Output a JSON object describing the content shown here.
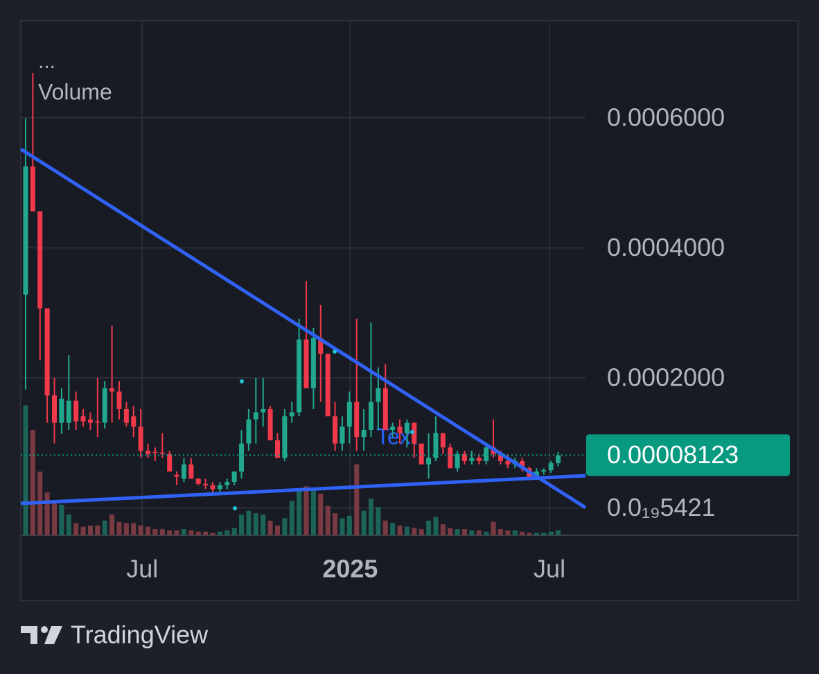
{
  "chart_data": {
    "type": "candlestick",
    "legend_dots": "...",
    "volume_label": "Volume",
    "annotation": "Text",
    "open": [
      0.000328,
      0.000525,
      0.000456,
      0.000307,
      0.000173,
      0.000131,
      0.000131,
      0.000165,
      0.000141,
      0.000136,
      0.000133,
      0.000131,
      0.000184,
      0.000179,
      0.000152,
      0.000141,
      0.000125,
      8.8e-05,
      8.6e-05,
      8.5e-05,
      8.3e-05,
      5.1e-05,
      4.5e-05,
      6.7e-05,
      4.5e-05,
      3.7e-05,
      3.5e-05,
      2.9e-05,
      3.5e-05,
      4e-05,
      5.6e-05,
      9.9e-05,
      0.000136,
      0.000147,
      0.000152,
      0.000104,
      7.7e-05,
      0.000141,
      0.000147,
      0.000259,
      0.000184,
      0.000261,
      0.000237,
      0.000141,
      9.9e-05,
      0.000125,
      0.000163,
      0.000109,
      0.00012,
      0.000163,
      0.000184,
      0.00012,
      0.000125,
      0.000115,
      0.000131,
      9.9e-05,
      6.7e-05,
      7.7e-05,
      0.000115,
      9.3e-05,
      6.1e-05,
      8.3e-05,
      7.2e-05,
      7.7e-05,
      7.2e-05,
      9.3e-05,
      8.3e-05,
      7.2e-05,
      6.7e-05,
      7.2e-05,
      6.1e-05,
      4.8e-05,
      5.6e-05,
      5.8e-05,
      6.9e-05
    ],
    "high": [
      0.000599,
      0.000669,
      0.000456,
      0.000307,
      0.0002,
      0.000184,
      0.000235,
      0.000179,
      0.000152,
      0.000147,
      0.0002,
      0.000195,
      0.00028,
      0.000195,
      0.000163,
      0.000157,
      0.000152,
      9.9e-05,
      9.3e-05,
      0.000115,
      8.8e-05,
      5.6e-05,
      7.7e-05,
      7.7e-05,
      4.5e-05,
      4.5e-05,
      4e-05,
      4e-05,
      4.5e-05,
      5.6e-05,
      0.00012,
      0.000152,
      0.0002,
      0.0002,
      0.000157,
      0.000115,
      0.000152,
      0.000163,
      0.000291,
      0.000349,
      0.000277,
      0.000312,
      0.000237,
      0.000163,
      0.000141,
      0.000179,
      0.000291,
      0.000152,
      0.000285,
      0.000216,
      0.000221,
      0.000131,
      0.000136,
      0.000136,
      0.000131,
      9.9e-05,
      0.000115,
      0.000141,
      0.000115,
      9.9e-05,
      8.8e-05,
      8.8e-05,
      8.8e-05,
      8.3e-05,
      9.9e-05,
      0.000136,
      8.8e-05,
      8.3e-05,
      7.7e-05,
      7.7e-05,
      6.4e-05,
      6.1e-05,
      6.1e-05,
      7.2e-05,
      8.6e-05
    ],
    "low": [
      0.000182,
      0.000456,
      0.000227,
      0.000131,
      9.9e-05,
      0.000114,
      0.00012,
      0.00012,
      0.000125,
      0.00012,
      0.000109,
      0.000122,
      0.000131,
      0.000136,
      0.000125,
      0.000109,
      7.7e-05,
      7.7e-05,
      7.2e-05,
      7.7e-05,
      5.6e-05,
      3.5e-05,
      4e-05,
      4.5e-05,
      3.5e-05,
      2.9e-05,
      2.4e-05,
      2.4e-05,
      2.9e-05,
      3.5e-05,
      4.5e-05,
      8.8e-05,
      9.9e-05,
      0.000125,
      0.000104,
      7.7e-05,
      7.2e-05,
      0.000131,
      0.000141,
      0.000184,
      0.000152,
      0.000163,
      0.000141,
      8.8e-05,
      8.8e-05,
      9.9e-05,
      8.8e-05,
      8.8e-05,
      0.000109,
      0.00012,
      0.00012,
      0.000109,
      9.9e-05,
      9.3e-05,
      7.7e-05,
      6.7e-05,
      4.5e-05,
      7.2e-05,
      8.3e-05,
      6.1e-05,
      5.6e-05,
      6.7e-05,
      6.7e-05,
      6.7e-05,
      6.7e-05,
      7.7e-05,
      6.7e-05,
      6.1e-05,
      6.1e-05,
      5.6e-05,
      4.5e-05,
      4.5e-05,
      5.1e-05,
      5.4e-05,
      6.4e-05
    ],
    "close": [
      0.000525,
      0.000456,
      0.000307,
      0.000173,
      0.000131,
      0.000168,
      0.000165,
      0.000133,
      0.000133,
      0.000131,
      0.000131,
      0.000184,
      0.000179,
      0.000152,
      0.000131,
      0.000125,
      8.8e-05,
      8.3e-05,
      8.5e-05,
      8.3e-05,
      5.6e-05,
      4.8e-05,
      6.7e-05,
      4.5e-05,
      3.7e-05,
      3.5e-05,
      2.9e-05,
      3.5e-05,
      4e-05,
      5.6e-05,
      9.9e-05,
      0.000136,
      0.000147,
      0.000152,
      0.000104,
      7.7e-05,
      0.000141,
      0.000147,
      0.000259,
      0.000184,
      0.000261,
      0.000237,
      0.000141,
      9.9e-05,
      0.000125,
      0.000163,
      0.000109,
      0.00012,
      0.000163,
      0.000184,
      0.00012,
      0.000125,
      0.000115,
      0.000131,
      9.9e-05,
      6.7e-05,
      7.7e-05,
      0.000115,
      9.3e-05,
      6.1e-05,
      8.3e-05,
      7.2e-05,
      7.7e-05,
      7.2e-05,
      9.3e-05,
      8.3e-05,
      7.2e-05,
      6.7e-05,
      7.2e-05,
      6.1e-05,
      4.8e-05,
      5.6e-05,
      5.8e-05,
      6.9e-05,
      8.1e-05
    ],
    "volume": [
      106,
      86,
      52,
      35,
      28,
      25,
      17,
      10,
      7,
      8,
      8,
      12,
      17,
      11,
      10,
      10,
      8,
      7,
      5,
      5,
      4,
      4,
      5,
      4,
      3,
      3,
      2,
      3,
      4,
      6,
      17,
      20,
      18,
      17,
      12,
      8,
      14,
      28,
      37,
      40,
      38,
      34,
      24,
      18,
      14,
      16,
      58,
      20,
      30,
      23,
      12,
      10,
      8,
      7,
      6,
      5,
      12,
      15,
      9,
      6,
      5,
      5,
      4,
      4,
      3,
      11,
      5,
      4,
      4,
      3,
      2,
      2,
      2,
      3,
      4
    ],
    "volume_ylim": [
      0,
      420
    ],
    "up_color": "#22a88f",
    "down_color": "#f0394b",
    "up_volume_color": "#1d6458",
    "down_volume_color": "#7a3a42",
    "ylim": [
      -4.21e-05,
      0.000749
    ],
    "yticks": [
      {
        "value": 0.0006,
        "label": "0.0006000"
      },
      {
        "value": 0.0004,
        "label": "0.0004000"
      },
      {
        "value": 0.0002,
        "label": "0.0002000"
      },
      {
        "value": 5.421e-20,
        "label": "0.0₁₉5421"
      }
    ],
    "xlim": [
      -0.67,
      77.8
    ],
    "xticks": [
      {
        "value": 16.2,
        "label": "Jul"
      },
      {
        "value": 45.1,
        "label": "2025"
      },
      {
        "value": 72.8,
        "label": "Jul"
      }
    ],
    "last_price": 8.123e-05,
    "last_price_color": "#089981",
    "grid": true
  },
  "brand": "TradingView"
}
